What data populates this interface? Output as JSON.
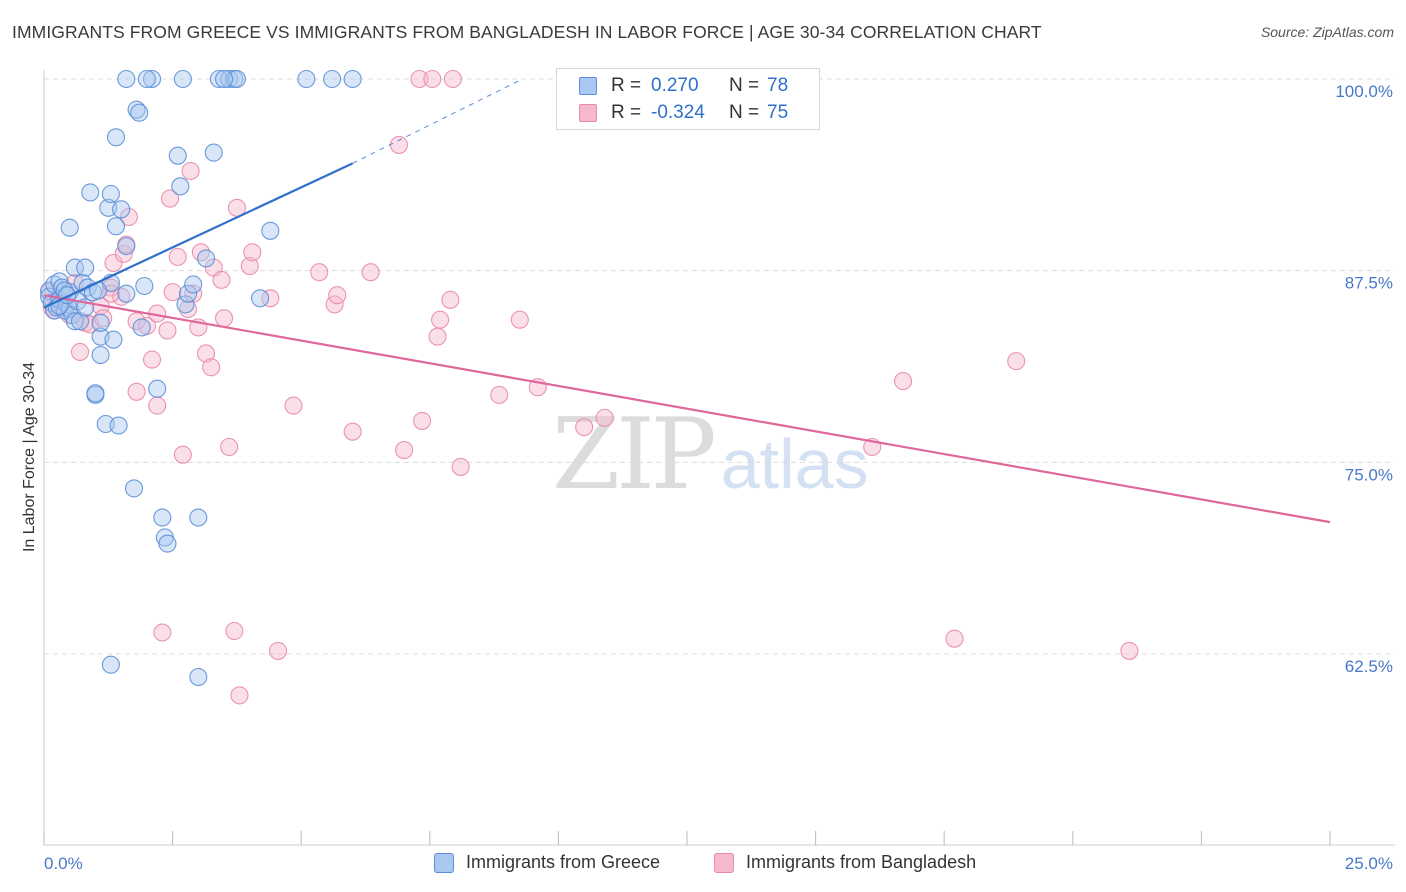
{
  "title": "IMMIGRANTS FROM GREECE VS IMMIGRANTS FROM BANGLADESH IN LABOR FORCE | AGE 30-34 CORRELATION CHART",
  "source": "Source: ZipAtlas.com",
  "watermark": {
    "zip": "ZIP",
    "atlas": "atlas"
  },
  "colors": {
    "greece_fill": "#a9c7f0",
    "greece_stroke": "#5b8fd8",
    "greece_line": "#2f70cc",
    "bangladesh_fill": "#f6b9cb",
    "bangladesh_stroke": "#e88aa8",
    "bangladesh_line": "#e0679a",
    "tick_text": "#4a78c8",
    "grid": "#dcdcdc"
  },
  "legend": {
    "rows": [
      {
        "r_label": "R =",
        "r_value": "0.270",
        "n_label": "N =",
        "n_value": "78"
      },
      {
        "r_label": "R =",
        "r_value": "-0.324",
        "n_label": "N =",
        "n_value": "75"
      }
    ]
  },
  "bottom_legend": {
    "greece": "Immigrants from Greece",
    "bangladesh": "Immigrants from Bangladesh"
  },
  "chart_data": {
    "type": "scatter",
    "title": "IMMIGRANTS FROM GREECE VS IMMIGRANTS FROM BANGLADESH IN LABOR FORCE | AGE 30-34 CORRELATION CHART",
    "xlabel": "",
    "ylabel": "In Labor Force | Age 30-34",
    "xlim": [
      0,
      25
    ],
    "ylim": [
      50,
      101.5
    ],
    "x_tick_labels": [
      "0.0%",
      "25.0%"
    ],
    "y_ticks": [
      62.5,
      75.0,
      87.5,
      100.0
    ],
    "y_tick_labels": [
      "62.5%",
      "75.0%",
      "87.5%",
      "100.0%"
    ],
    "grid": true,
    "legend_position": "top-center",
    "series": [
      {
        "name": "Immigrants from Greece",
        "R": 0.27,
        "N": 78,
        "trend": {
          "x_start": 0.0,
          "y_start": 85.1,
          "x_end": 6.0,
          "y_end": 94.5,
          "dashed_to_x": 9.3,
          "dashed_to_y": 100.0
        },
        "points": [
          [
            0.1,
            86.2
          ],
          [
            0.1,
            85.8
          ],
          [
            0.15,
            85.4
          ],
          [
            0.2,
            84.9
          ],
          [
            0.2,
            86.6
          ],
          [
            0.25,
            85.1
          ],
          [
            0.3,
            86.8
          ],
          [
            0.3,
            85.6
          ],
          [
            0.35,
            86.4
          ],
          [
            0.4,
            84.9
          ],
          [
            0.45,
            85.3
          ],
          [
            0.5,
            86.1
          ],
          [
            0.5,
            85.0
          ],
          [
            0.55,
            84.6
          ],
          [
            0.6,
            84.2
          ],
          [
            0.6,
            87.7
          ],
          [
            0.65,
            85.5
          ],
          [
            0.7,
            84.2
          ],
          [
            0.75,
            86.7
          ],
          [
            0.8,
            87.7
          ],
          [
            0.8,
            85.1
          ],
          [
            0.85,
            86.4
          ],
          [
            0.9,
            92.6
          ],
          [
            0.95,
            86.1
          ],
          [
            1.0,
            79.4
          ],
          [
            1.0,
            79.5
          ],
          [
            1.1,
            82.0
          ],
          [
            1.1,
            83.2
          ],
          [
            1.1,
            84.1
          ],
          [
            1.2,
            77.5
          ],
          [
            1.25,
            91.6
          ],
          [
            1.3,
            92.5
          ],
          [
            1.3,
            86.7
          ],
          [
            1.35,
            83.0
          ],
          [
            1.4,
            90.4
          ],
          [
            1.45,
            77.4
          ],
          [
            1.5,
            91.5
          ],
          [
            1.6,
            89.1
          ],
          [
            1.6,
            86.0
          ],
          [
            1.75,
            73.3
          ],
          [
            1.8,
            98.0
          ],
          [
            1.85,
            97.8
          ],
          [
            1.9,
            83.8
          ],
          [
            1.95,
            86.5
          ],
          [
            2.2,
            79.8
          ],
          [
            2.3,
            71.4
          ],
          [
            2.35,
            70.1
          ],
          [
            2.4,
            69.7
          ],
          [
            2.6,
            95.0
          ],
          [
            2.65,
            93.0
          ],
          [
            2.75,
            85.3
          ],
          [
            2.8,
            86.0
          ],
          [
            2.9,
            86.6
          ],
          [
            3.0,
            71.4
          ],
          [
            3.15,
            88.3
          ],
          [
            3.3,
            95.2
          ],
          [
            1.4,
            96.2
          ],
          [
            0.5,
            90.3
          ],
          [
            1.3,
            61.8
          ],
          [
            3.0,
            61.0
          ],
          [
            4.2,
            85.7
          ],
          [
            4.4,
            90.1
          ],
          [
            1.6,
            100.0
          ],
          [
            2.1,
            100.0
          ],
          [
            2.7,
            100.0
          ],
          [
            3.4,
            100.0
          ],
          [
            3.6,
            100.0
          ],
          [
            3.7,
            100.0
          ],
          [
            3.75,
            100.0
          ],
          [
            5.1,
            100.0
          ],
          [
            5.6,
            100.0
          ],
          [
            6.0,
            100.0
          ],
          [
            0.3,
            85.2
          ],
          [
            0.4,
            86.2
          ],
          [
            0.45,
            85.9
          ],
          [
            2.0,
            100.0
          ],
          [
            3.5,
            100.0
          ],
          [
            1.05,
            86.2
          ]
        ]
      },
      {
        "name": "Immigrants from Bangladesh",
        "R": -0.324,
        "N": 75,
        "trend": {
          "x_start": 0.0,
          "y_start": 85.9,
          "x_end": 25.0,
          "y_end": 71.1
        },
        "points": [
          [
            0.1,
            86.1
          ],
          [
            0.15,
            85.1
          ],
          [
            0.2,
            84.9
          ],
          [
            0.3,
            85.6
          ],
          [
            0.4,
            85.1
          ],
          [
            0.5,
            84.6
          ],
          [
            0.6,
            86.7
          ],
          [
            0.7,
            82.2
          ],
          [
            0.8,
            84.1
          ],
          [
            0.9,
            84.0
          ],
          [
            1.1,
            85.2
          ],
          [
            1.15,
            84.4
          ],
          [
            1.3,
            86.4
          ],
          [
            1.35,
            88.0
          ],
          [
            1.5,
            85.8
          ],
          [
            1.55,
            88.6
          ],
          [
            1.6,
            89.2
          ],
          [
            1.65,
            91.0
          ],
          [
            1.8,
            79.6
          ],
          [
            1.8,
            84.2
          ],
          [
            2.0,
            83.9
          ],
          [
            2.1,
            81.7
          ],
          [
            2.2,
            84.7
          ],
          [
            2.2,
            78.7
          ],
          [
            2.3,
            63.9
          ],
          [
            2.4,
            83.6
          ],
          [
            2.45,
            92.2
          ],
          [
            2.5,
            86.1
          ],
          [
            2.6,
            88.4
          ],
          [
            2.7,
            75.5
          ],
          [
            2.8,
            85.0
          ],
          [
            2.85,
            94.0
          ],
          [
            3.0,
            83.8
          ],
          [
            3.05,
            88.7
          ],
          [
            3.15,
            82.1
          ],
          [
            3.25,
            81.2
          ],
          [
            3.3,
            87.7
          ],
          [
            3.45,
            86.9
          ],
          [
            3.5,
            84.4
          ],
          [
            3.6,
            76.0
          ],
          [
            3.7,
            64.0
          ],
          [
            3.75,
            91.6
          ],
          [
            3.8,
            59.8
          ],
          [
            4.0,
            87.8
          ],
          [
            4.05,
            88.7
          ],
          [
            4.4,
            85.7
          ],
          [
            4.55,
            62.7
          ],
          [
            4.85,
            78.7
          ],
          [
            5.35,
            87.4
          ],
          [
            5.65,
            85.3
          ],
          [
            5.7,
            85.9
          ],
          [
            6.0,
            77.0
          ],
          [
            6.35,
            87.4
          ],
          [
            6.9,
            95.7
          ],
          [
            7.0,
            75.8
          ],
          [
            7.3,
            100.0
          ],
          [
            7.35,
            77.7
          ],
          [
            7.55,
            100.0
          ],
          [
            7.65,
            83.2
          ],
          [
            7.7,
            84.3
          ],
          [
            7.9,
            85.6
          ],
          [
            8.1,
            74.7
          ],
          [
            8.85,
            79.4
          ],
          [
            9.25,
            84.3
          ],
          [
            9.6,
            79.9
          ],
          [
            10.5,
            77.3
          ],
          [
            10.9,
            77.9
          ],
          [
            16.1,
            76.0
          ],
          [
            16.7,
            80.3
          ],
          [
            18.9,
            81.6
          ],
          [
            17.7,
            63.5
          ],
          [
            21.1,
            62.7
          ],
          [
            1.3,
            86.0
          ],
          [
            2.9,
            86.0
          ],
          [
            7.95,
            100.0
          ]
        ]
      }
    ]
  }
}
